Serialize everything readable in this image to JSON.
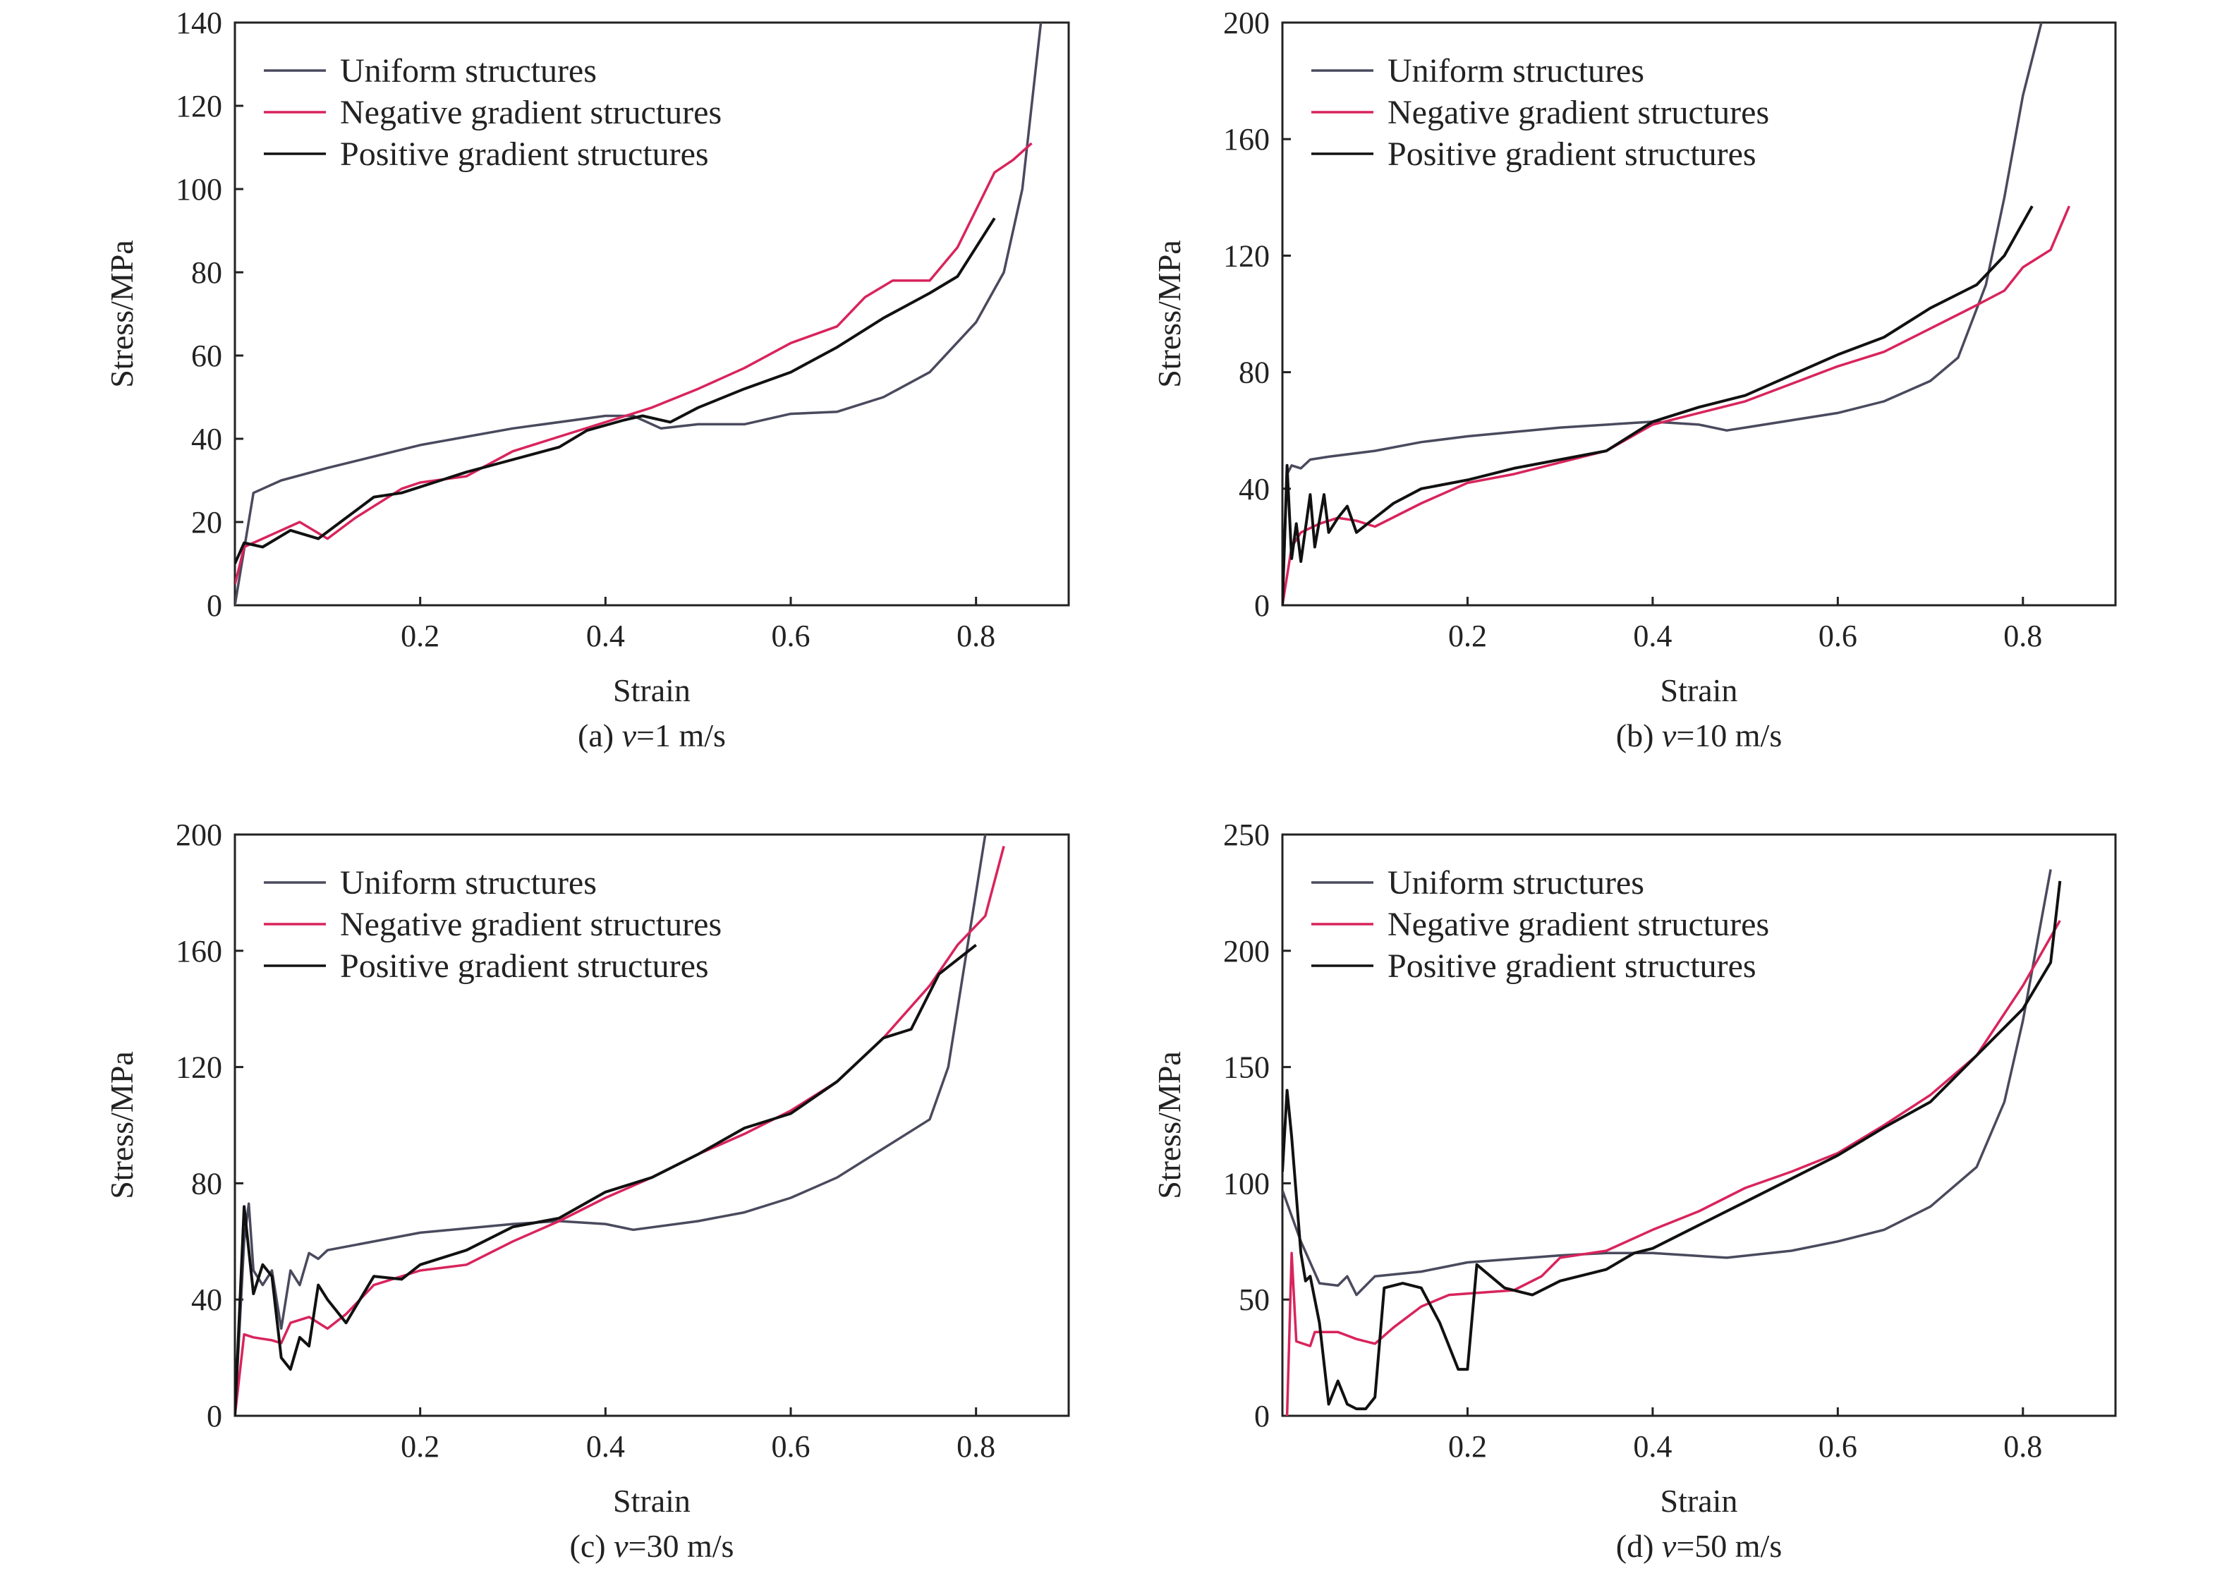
{
  "colors": {
    "uniform": "#4a4a5e",
    "negative": "#d8245c",
    "positive": "#111111",
    "axis": "#222222"
  },
  "chart_data": [
    {
      "type": "line",
      "caption": {
        "prefix": "(a) ",
        "var": "v",
        "suffix": "=1 m/s"
      },
      "xlabel": "Strain",
      "ylabel": "Stress/MPa",
      "xlim": [
        0,
        0.9
      ],
      "ylim": [
        0,
        140
      ],
      "x_ticks": [
        "0.2",
        "0.4",
        "0.6",
        "0.8"
      ],
      "y_ticks": [
        "0",
        "20",
        "40",
        "60",
        "80",
        "100",
        "120",
        "140"
      ],
      "legend_position": "top-left",
      "grid": false,
      "series": [
        {
          "name": "Uniform structures",
          "key": "uniform",
          "x": [
            0,
            0.02,
            0.05,
            0.1,
            0.2,
            0.3,
            0.4,
            0.43,
            0.46,
            0.5,
            0.55,
            0.6,
            0.65,
            0.7,
            0.75,
            0.8,
            0.83,
            0.85,
            0.87
          ],
          "y": [
            0,
            27,
            30,
            33,
            38.5,
            42.5,
            45.5,
            45.5,
            42.5,
            43.5,
            43.5,
            46,
            46.5,
            50,
            56,
            68,
            80,
            100,
            140
          ]
        },
        {
          "name": "Negative gradient structures",
          "key": "negative",
          "x": [
            0,
            0.01,
            0.03,
            0.07,
            0.1,
            0.13,
            0.18,
            0.2,
            0.25,
            0.3,
            0.35,
            0.4,
            0.45,
            0.5,
            0.55,
            0.6,
            0.65,
            0.68,
            0.71,
            0.75,
            0.78,
            0.8,
            0.82,
            0.84,
            0.86
          ],
          "y": [
            5,
            14,
            16,
            20,
            16,
            21,
            28,
            29.5,
            31,
            37,
            40.5,
            44,
            47.5,
            52,
            57,
            63,
            67,
            74,
            78,
            78,
            86,
            95,
            104,
            107,
            111
          ]
        },
        {
          "name": "Positive gradient structures",
          "key": "positive",
          "x": [
            0,
            0.01,
            0.03,
            0.06,
            0.09,
            0.12,
            0.15,
            0.18,
            0.25,
            0.3,
            0.35,
            0.38,
            0.42,
            0.44,
            0.47,
            0.5,
            0.55,
            0.6,
            0.65,
            0.7,
            0.75,
            0.78,
            0.8,
            0.82
          ],
          "y": [
            10,
            15,
            14,
            18,
            16,
            21,
            26,
            27,
            32,
            35,
            38,
            42,
            44.5,
            45.5,
            44,
            47.5,
            52,
            56,
            62,
            69,
            75,
            79,
            86,
            93
          ]
        }
      ]
    },
    {
      "type": "line",
      "caption": {
        "prefix": "(b) ",
        "var": "v",
        "suffix": "=10 m/s"
      },
      "xlabel": "Strain",
      "ylabel": "Stress/MPa",
      "xlim": [
        0,
        0.9
      ],
      "ylim": [
        0,
        200
      ],
      "x_ticks": [
        "0.2",
        "0.4",
        "0.6",
        "0.8"
      ],
      "y_ticks": [
        "0",
        "40",
        "80",
        "120",
        "160",
        "200"
      ],
      "legend_position": "top-left",
      "grid": false,
      "series": [
        {
          "name": "Uniform structures",
          "key": "uniform",
          "x": [
            0,
            0.005,
            0.01,
            0.02,
            0.03,
            0.05,
            0.1,
            0.15,
            0.2,
            0.3,
            0.4,
            0.45,
            0.48,
            0.5,
            0.6,
            0.65,
            0.7,
            0.73,
            0.76,
            0.78,
            0.8,
            0.82
          ],
          "y": [
            0,
            45,
            48,
            47,
            50,
            51,
            53,
            56,
            58,
            61,
            63,
            62,
            60,
            61,
            66,
            70,
            77,
            85,
            110,
            140,
            175,
            200
          ]
        },
        {
          "name": "Negative gradient structures",
          "key": "negative",
          "x": [
            0,
            0.01,
            0.02,
            0.04,
            0.06,
            0.08,
            0.1,
            0.15,
            0.2,
            0.25,
            0.3,
            0.35,
            0.4,
            0.45,
            0.5,
            0.55,
            0.6,
            0.65,
            0.7,
            0.75,
            0.78,
            0.8,
            0.83,
            0.85
          ],
          "y": [
            0,
            20,
            25,
            28,
            30,
            29,
            27,
            35,
            42,
            45,
            49,
            53,
            62,
            66,
            70,
            76,
            82,
            87,
            95,
            103,
            108,
            116,
            122,
            137
          ]
        },
        {
          "name": "Positive gradient structures",
          "key": "positive",
          "x": [
            0,
            0.005,
            0.01,
            0.015,
            0.02,
            0.03,
            0.035,
            0.045,
            0.05,
            0.06,
            0.07,
            0.08,
            0.1,
            0.12,
            0.15,
            0.2,
            0.25,
            0.3,
            0.35,
            0.4,
            0.45,
            0.5,
            0.55,
            0.6,
            0.65,
            0.7,
            0.75,
            0.78,
            0.81
          ],
          "y": [
            0,
            48,
            16,
            28,
            15,
            38,
            20,
            38,
            25,
            30,
            34,
            25,
            30,
            35,
            40,
            43,
            47,
            50,
            53,
            63,
            68,
            72,
            79,
            86,
            92,
            102,
            110,
            120,
            137
          ]
        }
      ]
    },
    {
      "type": "line",
      "caption": {
        "prefix": "(c) ",
        "var": "v",
        "suffix": "=30 m/s"
      },
      "xlabel": "Strain",
      "ylabel": "Stress/MPa",
      "xlim": [
        0,
        0.9
      ],
      "ylim": [
        0,
        200
      ],
      "x_ticks": [
        "0.2",
        "0.4",
        "0.6",
        "0.8"
      ],
      "y_ticks": [
        "0",
        "40",
        "80",
        "120",
        "160",
        "200"
      ],
      "legend_position": "top-left",
      "grid": false,
      "series": [
        {
          "name": "Uniform structures",
          "key": "uniform",
          "x": [
            0,
            0.01,
            0.015,
            0.02,
            0.03,
            0.04,
            0.05,
            0.06,
            0.07,
            0.08,
            0.09,
            0.1,
            0.2,
            0.3,
            0.35,
            0.4,
            0.43,
            0.5,
            0.55,
            0.6,
            0.65,
            0.7,
            0.75,
            0.77,
            0.79,
            0.81
          ],
          "y": [
            0,
            60,
            73,
            50,
            45,
            50,
            30,
            50,
            45,
            56,
            54,
            57,
            63,
            66,
            67,
            66,
            64,
            67,
            70,
            75,
            82,
            92,
            102,
            120,
            160,
            200
          ]
        },
        {
          "name": "Negative gradient structures",
          "key": "negative",
          "x": [
            0,
            0.01,
            0.02,
            0.04,
            0.05,
            0.06,
            0.08,
            0.1,
            0.12,
            0.15,
            0.2,
            0.25,
            0.3,
            0.35,
            0.4,
            0.45,
            0.5,
            0.55,
            0.6,
            0.65,
            0.7,
            0.75,
            0.78,
            0.81,
            0.83
          ],
          "y": [
            0,
            28,
            27,
            26,
            25,
            32,
            34,
            30,
            35,
            45,
            50,
            52,
            60,
            67,
            75,
            82,
            90,
            97,
            105,
            115,
            130,
            148,
            162,
            172,
            196
          ]
        },
        {
          "name": "Positive gradient structures",
          "key": "positive",
          "x": [
            0,
            0.01,
            0.02,
            0.03,
            0.04,
            0.05,
            0.06,
            0.07,
            0.08,
            0.09,
            0.1,
            0.12,
            0.15,
            0.18,
            0.2,
            0.25,
            0.3,
            0.35,
            0.4,
            0.45,
            0.5,
            0.55,
            0.6,
            0.65,
            0.7,
            0.73,
            0.76,
            0.8
          ],
          "y": [
            0,
            72,
            42,
            52,
            48,
            20,
            16,
            27,
            24,
            45,
            40,
            32,
            48,
            47,
            52,
            57,
            65,
            68,
            77,
            82,
            90,
            99,
            104,
            115,
            130,
            133,
            152,
            162
          ]
        }
      ]
    },
    {
      "type": "line",
      "caption": {
        "prefix": "(d) ",
        "var": "v",
        "suffix": "=50 m/s"
      },
      "xlabel": "Strain",
      "ylabel": "Stress/MPa",
      "xlim": [
        0,
        0.9
      ],
      "ylim": [
        0,
        250
      ],
      "x_ticks": [
        "0.2",
        "0.4",
        "0.6",
        "0.8"
      ],
      "y_ticks": [
        "0",
        "50",
        "100",
        "150",
        "200",
        "250"
      ],
      "legend_position": "top-left",
      "grid": false,
      "series": [
        {
          "name": "Uniform structures",
          "key": "uniform",
          "x": [
            0,
            0.02,
            0.04,
            0.06,
            0.07,
            0.08,
            0.1,
            0.15,
            0.2,
            0.3,
            0.35,
            0.4,
            0.48,
            0.55,
            0.6,
            0.65,
            0.7,
            0.75,
            0.78,
            0.8,
            0.83
          ],
          "y": [
            97,
            75,
            57,
            56,
            60,
            52,
            60,
            62,
            66,
            69,
            70,
            70,
            68,
            71,
            75,
            80,
            90,
            107,
            135,
            170,
            235
          ]
        },
        {
          "name": "Negative gradient structures",
          "key": "negative",
          "x": [
            0.005,
            0.01,
            0.015,
            0.03,
            0.035,
            0.06,
            0.08,
            0.1,
            0.12,
            0.15,
            0.18,
            0.25,
            0.28,
            0.3,
            0.35,
            0.4,
            0.45,
            0.5,
            0.55,
            0.6,
            0.65,
            0.7,
            0.75,
            0.8,
            0.84
          ],
          "y": [
            0,
            70,
            32,
            30,
            36,
            36,
            33,
            31,
            38,
            47,
            52,
            54,
            60,
            68,
            71,
            80,
            88,
            98,
            105,
            113,
            125,
            138,
            155,
            185,
            213
          ]
        },
        {
          "name": "Positive gradient structures",
          "key": "positive",
          "x": [
            0,
            0.005,
            0.01,
            0.02,
            0.025,
            0.03,
            0.04,
            0.05,
            0.06,
            0.07,
            0.08,
            0.09,
            0.1,
            0.11,
            0.13,
            0.15,
            0.17,
            0.19,
            0.2,
            0.21,
            0.24,
            0.27,
            0.3,
            0.35,
            0.38,
            0.4,
            0.45,
            0.5,
            0.55,
            0.6,
            0.65,
            0.7,
            0.75,
            0.8,
            0.83,
            0.84
          ],
          "y": [
            105,
            140,
            120,
            70,
            58,
            60,
            40,
            5,
            15,
            5,
            3,
            3,
            8,
            55,
            57,
            55,
            40,
            20,
            20,
            65,
            55,
            52,
            58,
            63,
            70,
            72,
            82,
            92,
            102,
            112,
            124,
            135,
            155,
            175,
            195,
            230
          ]
        }
      ]
    }
  ]
}
